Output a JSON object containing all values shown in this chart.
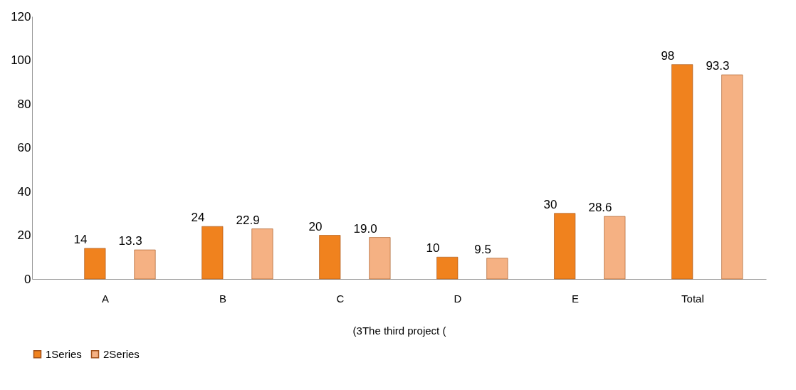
{
  "chart_data": {
    "type": "bar",
    "xlabel": "(3The third project (",
    "categories": [
      "A",
      "B",
      "C",
      "D",
      "E",
      "Total"
    ],
    "series": [
      {
        "name": "1Series",
        "color": "#f0821e",
        "values": [
          14,
          24,
          20,
          10,
          30,
          98
        ],
        "value_labels": [
          "14",
          "24",
          "20",
          "10",
          "30",
          "98"
        ]
      },
      {
        "name": "2Series",
        "color": "#f5b183",
        "values": [
          13.3,
          22.9,
          19.0,
          9.5,
          28.6,
          93.3
        ],
        "value_labels": [
          "13.3",
          "22.9",
          "19.0",
          "9.5",
          "28.6",
          "93.3"
        ]
      }
    ],
    "ylim": [
      0,
      120
    ],
    "yticks": [
      0,
      20,
      40,
      60,
      80,
      100,
      120
    ],
    "grid": false,
    "legend": "bottom"
  }
}
